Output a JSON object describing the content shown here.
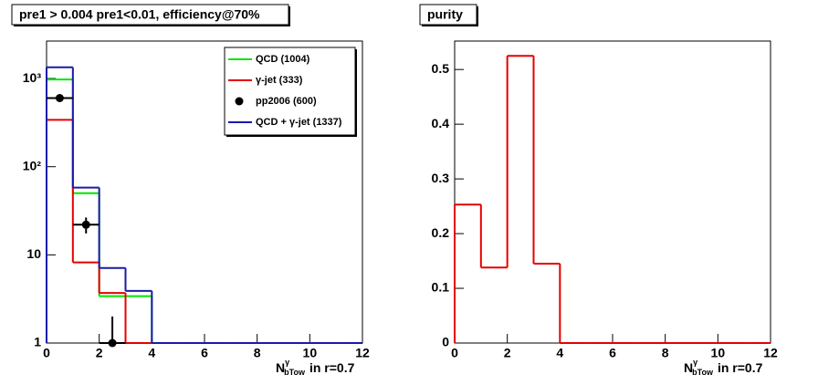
{
  "chart_data": [
    {
      "type": "histogram",
      "title": "pre1 > 0.004  pre1<0.01, efficiency@70%",
      "x_label": {
        "base": "N",
        "sup": "γ",
        "sub": "bTow",
        "text": "in r=0.7"
      },
      "bins": [
        0,
        1,
        2,
        3,
        4,
        5,
        6,
        7,
        8,
        9,
        10,
        11,
        12
      ],
      "xlim": [
        0,
        12
      ],
      "xticks": [
        0,
        2,
        4,
        6,
        8,
        10,
        12
      ],
      "ylim": [
        1,
        2660
      ],
      "log_y": true,
      "yticks": [
        1,
        10,
        {
          "value": 100,
          "label": "10²"
        },
        {
          "value": 1000,
          "label": "10³"
        }
      ],
      "legend": "top-right",
      "series": [
        {
          "name": "QCD (1004)",
          "color": "#00e600",
          "values": [
            975,
            50,
            3.4,
            3.4,
            0,
            0,
            0,
            0,
            0,
            0,
            0,
            0
          ]
        },
        {
          "name": "γ-jet (333)",
          "color": "#e60000",
          "values": [
            340,
            8.2,
            3.7,
            0,
            0,
            0,
            0,
            0,
            0,
            0,
            0,
            0
          ]
        },
        {
          "name": "QCD + γ-jet (1337)",
          "color": "#1a1aaa",
          "values": [
            1340,
            58,
            7.1,
            3.9,
            0,
            0,
            0,
            0,
            0,
            0,
            0,
            0
          ]
        }
      ],
      "points": {
        "name": "pp2006 (600)",
        "color": "#000000",
        "x": [
          0.5,
          1.5,
          2.5
        ],
        "values": [
          600,
          22,
          1
        ],
        "errors": [
          25,
          4.5,
          1
        ]
      }
    },
    {
      "type": "histogram",
      "title": "purity",
      "x_label": {
        "base": "N",
        "sup": "γ",
        "sub": "bTow",
        "text": "in r=0.7"
      },
      "bins": [
        0,
        1,
        2,
        3,
        4,
        5,
        6,
        7,
        8,
        9,
        10,
        11,
        12
      ],
      "xlim": [
        0,
        12
      ],
      "xticks": [
        0,
        2,
        4,
        6,
        8,
        10,
        12
      ],
      "ylim": [
        0,
        0.552
      ],
      "log_y": false,
      "yticks": [
        0,
        0.1,
        0.2,
        0.3,
        0.4,
        0.5
      ],
      "series": [
        {
          "color": "#e60000",
          "values": [
            0.253,
            0.138,
            0.525,
            0.145,
            0,
            0,
            0,
            0,
            0,
            0,
            0,
            0
          ]
        }
      ]
    }
  ]
}
